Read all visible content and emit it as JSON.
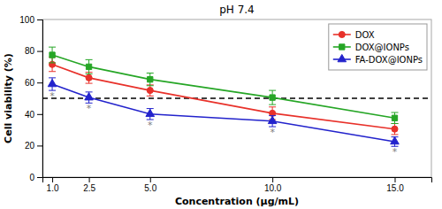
{
  "chart_data": {
    "type": "line",
    "title": "pH 7.4",
    "x_label": "Concentration (μg/mL)",
    "y_label": "Cell viability (%)",
    "x": [
      1.0,
      2.5,
      5.0,
      10.0,
      15.0
    ],
    "series": [
      {
        "name": "DOX",
        "color": "#e8312a",
        "marker": "circle",
        "values": [
          71.5,
          63.0,
          55.0,
          40.5,
          30.5
        ],
        "errors": [
          4.5,
          3.5,
          3.5,
          4.0,
          3.5
        ]
      },
      {
        "name": "DOX@IONPs",
        "color": "#26a626",
        "marker": "square",
        "values": [
          77.5,
          70.0,
          62.0,
          50.5,
          37.5
        ],
        "errors": [
          5.0,
          4.5,
          4.0,
          4.5,
          3.5
        ]
      },
      {
        "name": "FA-DOX@IONPs",
        "color": "#2323cc",
        "marker": "triangle",
        "values": [
          59.0,
          50.5,
          40.0,
          35.5,
          22.5
        ],
        "errors": [
          4.0,
          3.5,
          3.5,
          3.5,
          3.0
        ]
      }
    ],
    "annotations": [
      {
        "text": "*",
        "x": 1.0,
        "series": "FA-DOX@IONPs"
      },
      {
        "text": "*",
        "x": 2.5,
        "series": "FA-DOX@IONPs"
      },
      {
        "text": "*",
        "x": 5.0,
        "series": "FA-DOX@IONPs"
      },
      {
        "text": "*",
        "x": 10.0,
        "series": "FA-DOX@IONPs"
      },
      {
        "text": "*",
        "x": 15.0,
        "series": "FA-DOX@IONPs"
      }
    ],
    "hline": {
      "value": 50,
      "line_style": "dashed",
      "color": "#000000"
    },
    "xlim": [
      0.6,
      16.5
    ],
    "ylim": [
      0,
      100
    ],
    "xticks": [
      {
        "value": 1.0,
        "label": "1.0"
      },
      2.5,
      {
        "value": 5.0,
        "label": "5.0"
      },
      {
        "value": 10.0,
        "label": "10.0"
      },
      {
        "value": 15.0,
        "label": "15.0"
      }
    ],
    "yticks": [
      0,
      20,
      40,
      60,
      80,
      100
    ],
    "grid": false,
    "legend": "upper right"
  }
}
